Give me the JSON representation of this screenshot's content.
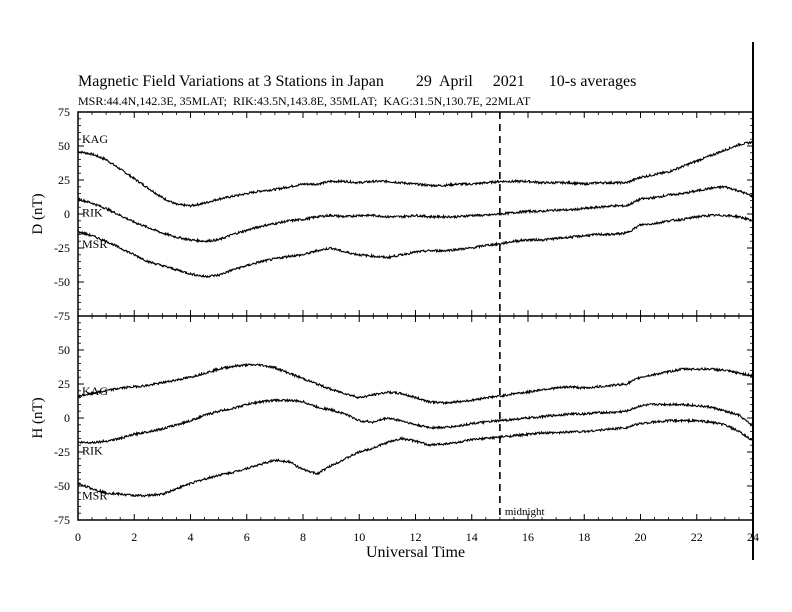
{
  "header": {
    "title": "Magnetic Field Variations at 3 Stations in Japan        29  April     2021      10-s averages",
    "subtitle": "MSR:44.4N,142.3E, 35MLAT;  RIK:43.5N,143.8E, 35MLAT;  KAG:31.5N,130.7E, 22MLAT"
  },
  "chart_data": [
    {
      "type": "line",
      "panel": "top",
      "ylabel": "D (nT)",
      "ylim": [
        -75,
        75
      ],
      "yticks": [
        -75,
        -50,
        -25,
        0,
        25,
        50,
        75
      ],
      "xlim": [
        0,
        24
      ],
      "xticks": [
        0,
        2,
        4,
        6,
        8,
        10,
        12,
        14,
        16,
        18,
        20,
        22,
        24
      ],
      "grid": false,
      "series": [
        {
          "name": "KAG",
          "x": [
            0,
            0.5,
            1,
            1.5,
            2,
            2.5,
            3,
            3.5,
            4,
            4.5,
            5,
            5.5,
            6,
            6.5,
            7,
            7.5,
            8,
            8.5,
            9,
            9.5,
            10,
            10.5,
            11,
            11.5,
            12,
            12.5,
            13,
            13.5,
            14,
            14.5,
            15,
            15.5,
            16,
            16.5,
            17,
            17.5,
            18,
            18.5,
            19,
            19.5,
            20,
            20.5,
            21,
            21.5,
            22,
            22.5,
            23,
            23.5,
            24
          ],
          "y": [
            46,
            44,
            40,
            33,
            26,
            19,
            12,
            7,
            6,
            8,
            11,
            13,
            15,
            17,
            18,
            20,
            22,
            22,
            24,
            24,
            23,
            24,
            24,
            23,
            22,
            21,
            21,
            22,
            22,
            23,
            24,
            24,
            24,
            23,
            23,
            23,
            22,
            23,
            23,
            23,
            27,
            29,
            31,
            35,
            39,
            43,
            47,
            51,
            53
          ]
        },
        {
          "name": "RIK",
          "x": [
            0,
            0.5,
            1,
            1.5,
            2,
            2.5,
            3,
            3.5,
            4,
            4.5,
            5,
            5.5,
            6,
            6.5,
            7,
            7.5,
            8,
            8.5,
            9,
            9.5,
            10,
            10.5,
            11,
            11.5,
            12,
            12.5,
            13,
            13.5,
            14,
            14.5,
            15,
            15.5,
            16,
            16.5,
            17,
            17.5,
            18,
            18.5,
            19,
            19.5,
            20,
            20.5,
            21,
            21.5,
            22,
            22.5,
            23,
            23.5,
            24
          ],
          "y": [
            11,
            8,
            4,
            -1,
            -6,
            -10,
            -14,
            -17,
            -19,
            -20,
            -19,
            -15,
            -12,
            -9,
            -7,
            -5,
            -4,
            -2,
            -1,
            -2,
            -1,
            -1,
            -2,
            -2,
            -1,
            -2,
            -2,
            -2,
            -1,
            -1,
            0,
            1,
            2,
            2,
            3,
            3,
            4,
            5,
            6,
            6,
            11,
            12,
            14,
            15,
            17,
            19,
            20,
            17,
            13
          ]
        },
        {
          "name": "MSR",
          "x": [
            0,
            0.5,
            1,
            1.5,
            2,
            2.5,
            3,
            3.5,
            4,
            4.5,
            5,
            5.5,
            6,
            6.5,
            7,
            7.5,
            8,
            8.5,
            9,
            9.5,
            10,
            10.5,
            11,
            11.5,
            12,
            12.5,
            13,
            13.5,
            14,
            14.5,
            15,
            15.5,
            16,
            16.5,
            17,
            17.5,
            18,
            18.5,
            19,
            19.5,
            20,
            20.5,
            21,
            21.5,
            22,
            22.5,
            23,
            23.5,
            24
          ],
          "y": [
            -13,
            -16,
            -20,
            -25,
            -30,
            -35,
            -38,
            -41,
            -44,
            -46,
            -45,
            -41,
            -38,
            -35,
            -33,
            -31,
            -30,
            -27,
            -25,
            -28,
            -30,
            -31,
            -32,
            -30,
            -28,
            -27,
            -27,
            -26,
            -25,
            -23,
            -22,
            -20,
            -19,
            -19,
            -18,
            -17,
            -16,
            -15,
            -15,
            -14,
            -8,
            -7,
            -5,
            -4,
            -2,
            -1,
            -1,
            -2,
            -5
          ]
        }
      ],
      "annotations": [
        "KAG",
        "RIK",
        "MSR"
      ]
    },
    {
      "type": "line",
      "panel": "bottom",
      "ylabel": "H (nT)",
      "xlabel": "Universal Time",
      "ylim": [
        -75,
        75
      ],
      "yticks": [
        -75,
        -50,
        -25,
        0,
        25,
        50
      ],
      "xlim": [
        0,
        24
      ],
      "xticks": [
        0,
        2,
        4,
        6,
        8,
        10,
        12,
        14,
        16,
        18,
        20,
        22,
        24
      ],
      "grid": false,
      "series": [
        {
          "name": "KAG",
          "x": [
            0,
            0.5,
            1,
            1.5,
            2,
            2.5,
            3,
            3.5,
            4,
            4.5,
            5,
            5.5,
            6,
            6.5,
            7,
            7.5,
            8,
            8.5,
            9,
            9.5,
            10,
            10.5,
            11,
            11.5,
            12,
            12.5,
            13,
            13.5,
            14,
            14.5,
            15,
            15.5,
            16,
            16.5,
            17,
            17.5,
            18,
            18.5,
            19,
            19.5,
            20,
            20.5,
            21,
            21.5,
            22,
            22.5,
            23,
            23.5,
            24
          ],
          "y": [
            16,
            18,
            20,
            22,
            23,
            24,
            26,
            28,
            30,
            33,
            36,
            38,
            39,
            39,
            37,
            33,
            29,
            25,
            21,
            18,
            15,
            17,
            19,
            18,
            15,
            12,
            11,
            12,
            13,
            15,
            16,
            18,
            19,
            21,
            22,
            23,
            22,
            23,
            24,
            25,
            30,
            32,
            34,
            36,
            36,
            36,
            35,
            33,
            31
          ]
        },
        {
          "name": "RIK",
          "x": [
            0,
            0.5,
            1,
            1.5,
            2,
            2.5,
            3,
            3.5,
            4,
            4.5,
            5,
            5.5,
            6,
            6.5,
            7,
            7.5,
            8,
            8.5,
            9,
            9.5,
            10,
            10.5,
            11,
            11.5,
            12,
            12.5,
            13,
            13.5,
            14,
            14.5,
            15,
            15.5,
            16,
            16.5,
            17,
            17.5,
            18,
            18.5,
            19,
            19.5,
            20,
            20.5,
            21,
            21.5,
            22,
            22.5,
            23,
            23.5,
            24
          ],
          "y": [
            -18,
            -18,
            -17,
            -15,
            -12,
            -10,
            -8,
            -5,
            -2,
            2,
            5,
            7,
            10,
            12,
            13,
            13,
            12,
            8,
            6,
            3,
            -2,
            -3,
            0,
            -2,
            -5,
            -7,
            -7,
            -6,
            -4,
            -3,
            -2,
            -1,
            0,
            1,
            2,
            3,
            3,
            4,
            4,
            5,
            9,
            10,
            10,
            10,
            9,
            8,
            5,
            2,
            -6
          ]
        },
        {
          "name": "MSR",
          "x": [
            0,
            0.5,
            1,
            1.5,
            2,
            2.5,
            3,
            3.5,
            4,
            4.5,
            5,
            5.5,
            6,
            6.5,
            7,
            7.5,
            8,
            8.5,
            9,
            9.5,
            10,
            10.5,
            11,
            11.5,
            12,
            12.5,
            13,
            13.5,
            14,
            14.5,
            15,
            15.5,
            16,
            16.5,
            17,
            17.5,
            18,
            18.5,
            19,
            19.5,
            20,
            20.5,
            21,
            21.5,
            22,
            22.5,
            23,
            23.5,
            24
          ],
          "y": [
            -48,
            -52,
            -55,
            -56,
            -57,
            -57,
            -56,
            -52,
            -48,
            -45,
            -42,
            -40,
            -37,
            -34,
            -31,
            -32,
            -38,
            -41,
            -35,
            -30,
            -25,
            -22,
            -18,
            -15,
            -17,
            -20,
            -19,
            -18,
            -16,
            -15,
            -14,
            -13,
            -12,
            -11,
            -11,
            -10,
            -10,
            -9,
            -8,
            -7,
            -4,
            -3,
            -2,
            -2,
            -2,
            -3,
            -5,
            -10,
            -17
          ]
        }
      ],
      "annotations": [
        "KAG",
        "RIK",
        "MSR"
      ]
    }
  ],
  "midnight": {
    "x": 15,
    "label": "midnight"
  }
}
